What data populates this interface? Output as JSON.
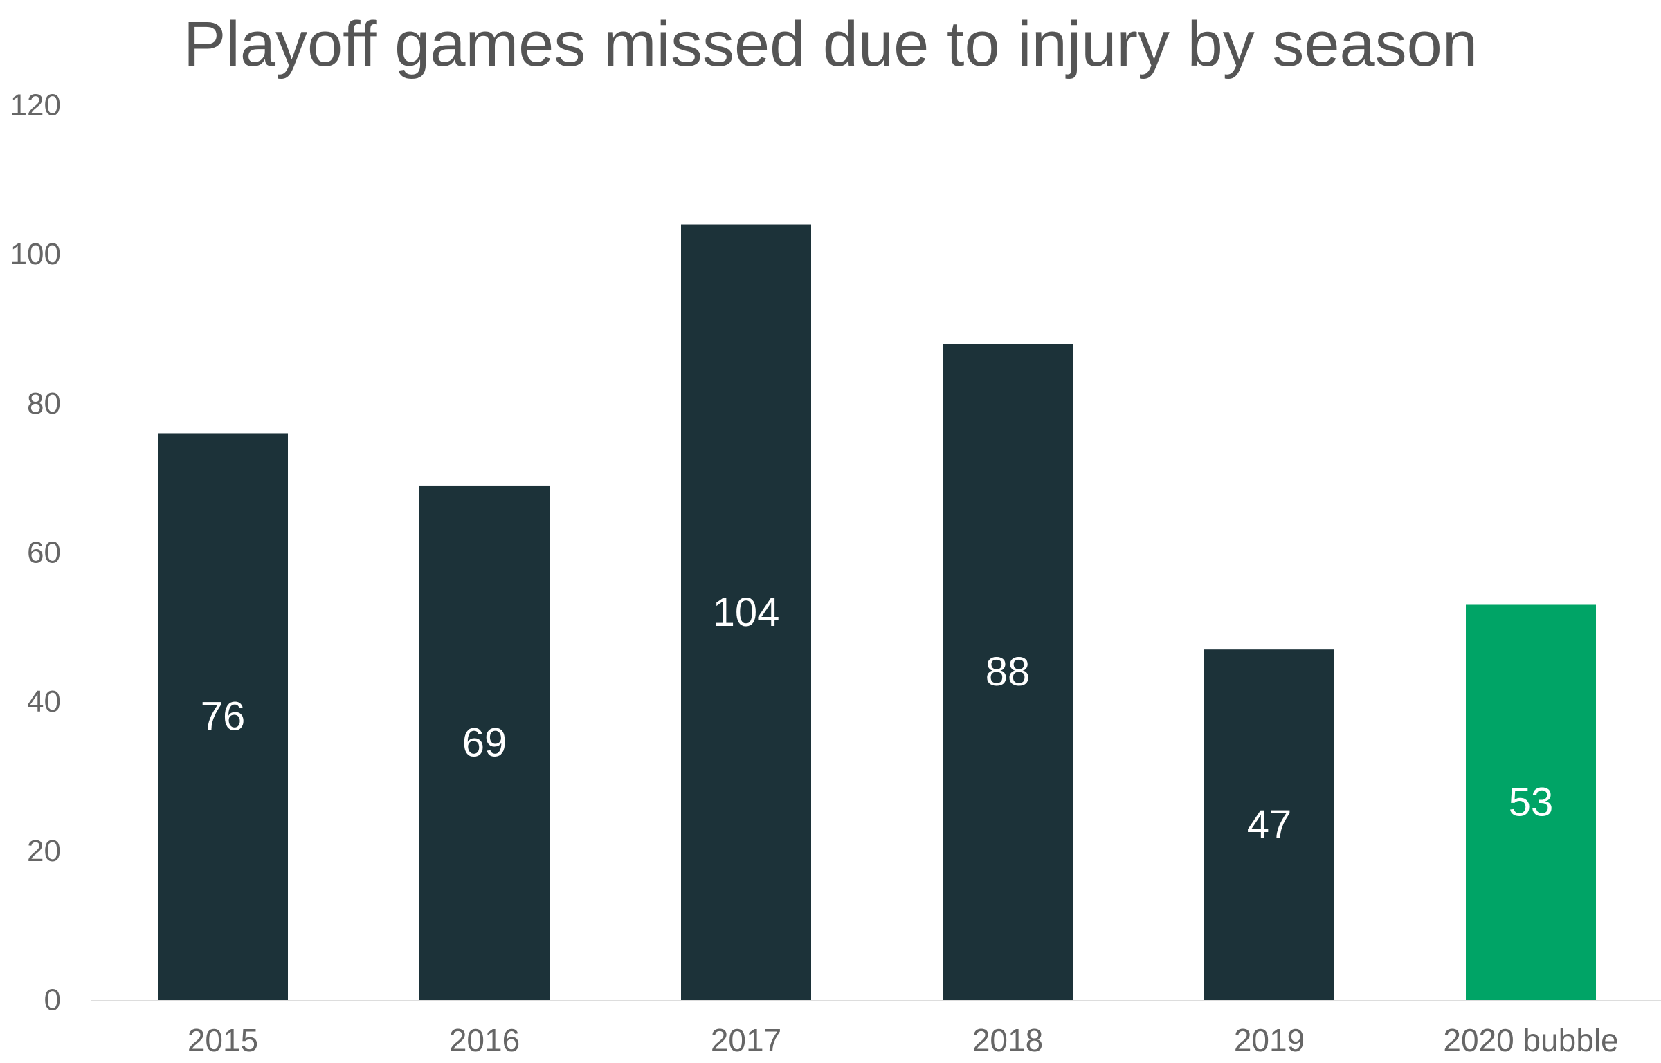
{
  "chart_data": {
    "type": "bar",
    "title": "Playoff games missed due to injury by season",
    "categories": [
      "2015",
      "2016",
      "2017",
      "2018",
      "2019",
      "2020 bubble"
    ],
    "values": [
      76,
      69,
      104,
      88,
      47,
      53
    ],
    "data_labels": [
      "76",
      "69",
      "104",
      "88",
      "47",
      "53"
    ],
    "xlabel": "",
    "ylabel": "",
    "ylim": [
      0,
      120
    ],
    "yticks": [
      0,
      20,
      40,
      60,
      80,
      100,
      120
    ],
    "ytick_labels": [
      "0",
      "20",
      "40",
      "60",
      "80",
      "100",
      "120"
    ],
    "grid": false,
    "legend": "none",
    "colors": {
      "bar": "#1c3239",
      "highlight": "#00a466",
      "axis": "#dddddd",
      "text": "#666666",
      "title": "#555555",
      "data_label": "#ffffff"
    },
    "highlight_categories": [
      "2020 bubble"
    ]
  }
}
